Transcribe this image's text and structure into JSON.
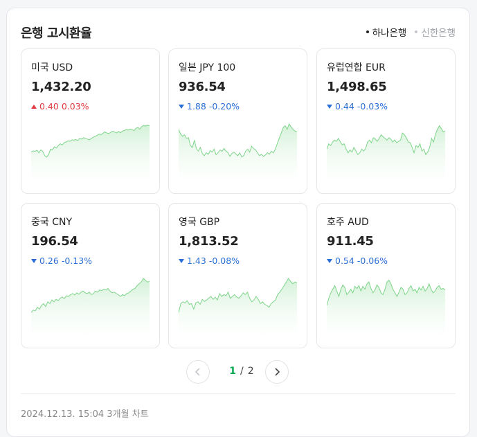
{
  "header": {
    "title": "은행 고시환율"
  },
  "banks": [
    {
      "label": "하나은행",
      "active": true
    },
    {
      "label": "신한은행",
      "active": false
    }
  ],
  "currencies": [
    {
      "name": "미국 USD",
      "rate": "1,432.20",
      "direction": "up",
      "change": "0.40",
      "percent": "0.03%",
      "trend": [
        0.22,
        0.25,
        0.24,
        0.27,
        0.2,
        0.28,
        0.24,
        0.12,
        0.08,
        0.15,
        0.3,
        0.28,
        0.37,
        0.33,
        0.4,
        0.45,
        0.42,
        0.48,
        0.5,
        0.53,
        0.52,
        0.56,
        0.55,
        0.57,
        0.54,
        0.6,
        0.58,
        0.62,
        0.6,
        0.58,
        0.56,
        0.6,
        0.63,
        0.66,
        0.68,
        0.72,
        0.7,
        0.74,
        0.78,
        0.75,
        0.73,
        0.77,
        0.8,
        0.78,
        0.75,
        0.79,
        0.76,
        0.8,
        0.82,
        0.85,
        0.83,
        0.86,
        0.84,
        0.82,
        0.88,
        0.9,
        0.86,
        0.93,
        0.96,
        0.94,
        0.97,
        0.95
      ]
    },
    {
      "name": "일본 JPY 100",
      "rate": "936.54",
      "direction": "down",
      "change": "1.88",
      "percent": "-0.20%",
      "trend": [
        0.85,
        0.72,
        0.66,
        0.7,
        0.6,
        0.62,
        0.4,
        0.35,
        0.55,
        0.32,
        0.25,
        0.35,
        0.18,
        0.12,
        0.2,
        0.16,
        0.26,
        0.22,
        0.3,
        0.15,
        0.2,
        0.28,
        0.24,
        0.32,
        0.25,
        0.2,
        0.1,
        0.18,
        0.22,
        0.17,
        0.12,
        0.2,
        0.08,
        0.12,
        0.25,
        0.3,
        0.22,
        0.38,
        0.32,
        0.28,
        0.2,
        0.12,
        0.16,
        0.1,
        0.14,
        0.2,
        0.16,
        0.24,
        0.2,
        0.3,
        0.45,
        0.6,
        0.75,
        0.9,
        0.95,
        0.85,
        1.0,
        0.92,
        0.85,
        0.8,
        0.78
      ]
    },
    {
      "name": "유럽연합 EUR",
      "rate": "1,498.65",
      "direction": "down",
      "change": "0.44",
      "percent": "-0.03%",
      "trend": [
        0.3,
        0.45,
        0.4,
        0.5,
        0.55,
        0.52,
        0.6,
        0.5,
        0.42,
        0.45,
        0.3,
        0.2,
        0.28,
        0.22,
        0.35,
        0.25,
        0.15,
        0.2,
        0.3,
        0.25,
        0.32,
        0.5,
        0.55,
        0.48,
        0.62,
        0.58,
        0.52,
        0.6,
        0.7,
        0.65,
        0.6,
        0.55,
        0.62,
        0.58,
        0.5,
        0.56,
        0.48,
        0.52,
        0.55,
        0.75,
        0.7,
        0.62,
        0.5,
        0.48,
        0.35,
        0.2,
        0.4,
        0.35,
        0.45,
        0.25,
        0.3,
        0.15,
        0.22,
        0.35,
        0.6,
        0.5,
        0.72,
        0.85,
        0.95,
        0.88,
        0.78,
        0.8
      ]
    },
    {
      "name": "중국 CNY",
      "rate": "196.54",
      "direction": "down",
      "change": "0.26",
      "percent": "-0.13%",
      "trend": [
        0.05,
        0.12,
        0.1,
        0.2,
        0.15,
        0.25,
        0.3,
        0.22,
        0.35,
        0.3,
        0.4,
        0.35,
        0.42,
        0.38,
        0.45,
        0.48,
        0.44,
        0.52,
        0.5,
        0.55,
        0.58,
        0.54,
        0.6,
        0.56,
        0.62,
        0.65,
        0.6,
        0.58,
        0.62,
        0.55,
        0.58,
        0.65,
        0.62,
        0.68,
        0.66,
        0.7,
        0.68,
        0.72,
        0.65,
        0.6,
        0.62,
        0.58,
        0.55,
        0.5,
        0.55,
        0.52,
        0.58,
        0.6,
        0.65,
        0.7,
        0.72,
        0.8,
        0.85,
        0.9,
        1.0,
        0.95,
        0.9,
        0.92
      ]
    },
    {
      "name": "영국 GBP",
      "rate": "1,813.52",
      "direction": "down",
      "change": "1.43",
      "percent": "-0.08%",
      "trend": [
        0.05,
        0.3,
        0.35,
        0.32,
        0.38,
        0.28,
        0.3,
        0.15,
        0.32,
        0.35,
        0.28,
        0.42,
        0.36,
        0.4,
        0.45,
        0.5,
        0.42,
        0.48,
        0.4,
        0.58,
        0.5,
        0.55,
        0.52,
        0.62,
        0.45,
        0.5,
        0.55,
        0.48,
        0.45,
        0.52,
        0.6,
        0.55,
        0.62,
        0.45,
        0.35,
        0.4,
        0.5,
        0.42,
        0.3,
        0.35,
        0.28,
        0.25,
        0.2,
        0.3,
        0.35,
        0.4,
        0.55,
        0.62,
        0.7,
        0.8,
        0.9,
        1.0,
        0.92,
        0.85,
        0.9,
        0.88
      ]
    },
    {
      "name": "호주 AUD",
      "rate": "911.45",
      "direction": "down",
      "change": "0.54",
      "percent": "-0.06%",
      "trend": [
        0.25,
        0.45,
        0.6,
        0.7,
        0.8,
        0.65,
        0.5,
        0.7,
        0.82,
        0.75,
        0.55,
        0.62,
        0.7,
        0.6,
        0.78,
        0.72,
        0.8,
        0.65,
        0.78,
        0.7,
        0.85,
        0.9,
        0.72,
        0.6,
        0.68,
        0.82,
        0.75,
        0.6,
        0.55,
        0.7,
        0.9,
        0.95,
        0.85,
        0.7,
        0.6,
        0.5,
        0.62,
        0.75,
        0.7,
        0.55,
        0.6,
        0.72,
        0.8,
        0.65,
        0.7,
        0.6,
        0.75,
        0.68,
        0.78,
        0.65,
        0.72,
        0.85,
        0.7,
        0.6,
        0.65,
        0.75,
        0.8,
        0.7,
        0.72,
        0.68
      ]
    }
  ],
  "pagination": {
    "current": "1",
    "separator": "/",
    "total": "2"
  },
  "footer": {
    "text": "2024.12.13. 15:04 3개월 차트"
  },
  "colors": {
    "up": "#e0393e",
    "down": "#2b6fd6",
    "spark_line": "#7ed48a",
    "spark_fill": "#e6f7e8",
    "page_current": "#03a94d"
  }
}
